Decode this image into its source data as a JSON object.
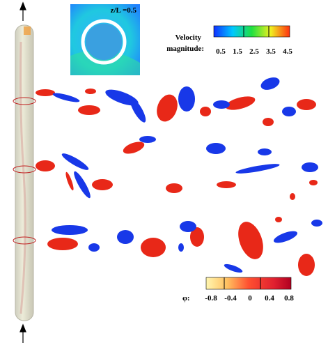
{
  "inset": {
    "label": "z/L =0.5"
  },
  "velocity_legend": {
    "title": [
      "Velocity",
      "magnitude:"
    ],
    "ticks": [
      "0.5",
      "1.5",
      "2.5",
      "3.5",
      "4.5"
    ]
  },
  "phi_legend": {
    "symbol": "φ:",
    "ticks": [
      "-0.8",
      "-0.4",
      "0",
      "0.4",
      "0.8"
    ]
  }
}
